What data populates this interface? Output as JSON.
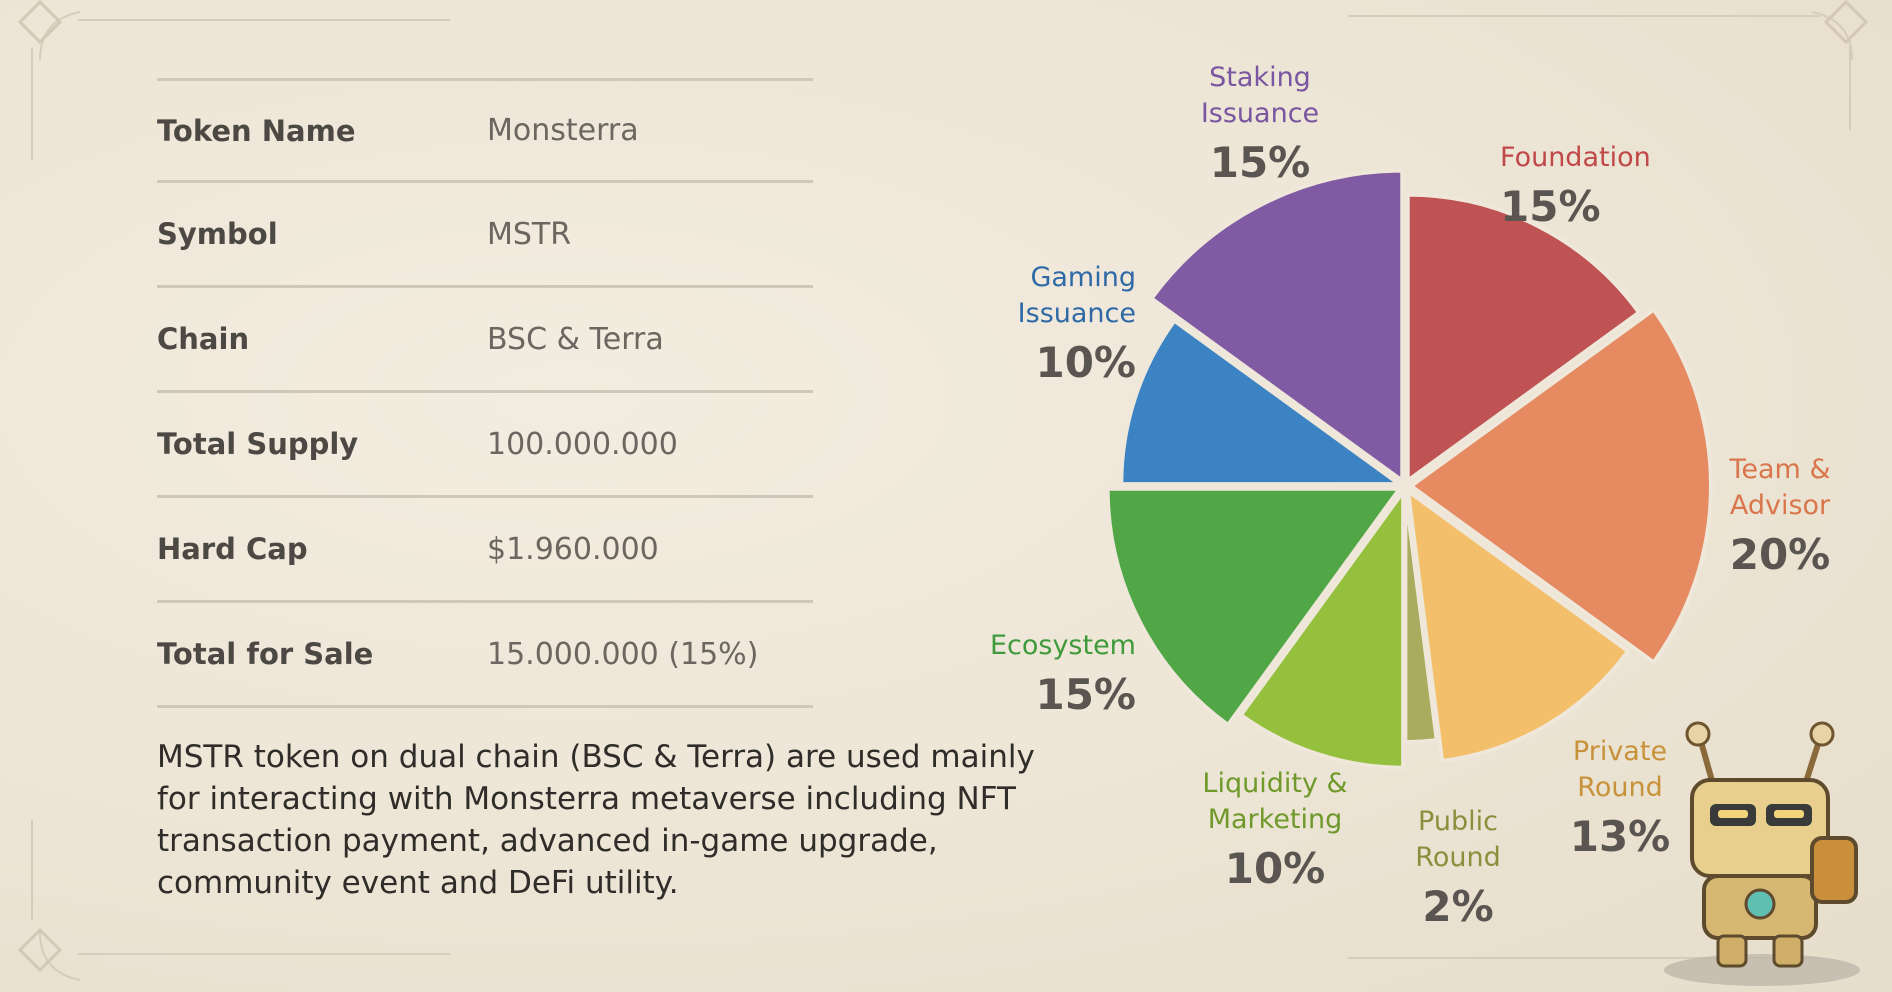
{
  "token_info": {
    "rows": [
      {
        "label": "Token Name",
        "value": "Monsterra"
      },
      {
        "label": "Symbol",
        "value": "MSTR"
      },
      {
        "label": "Chain",
        "value": "BSC & Terra"
      },
      {
        "label": "Total Supply",
        "value": "100.000.000"
      },
      {
        "label": "Hard Cap",
        "value": "$1.960.000"
      },
      {
        "label": "Total for Sale",
        "value": "15.000.000 (15%)"
      }
    ],
    "description": "MSTR token on dual chain (BSC & Terra) are used mainly for interacting with Monsterra metaverse including NFT transaction payment, advanced in-game upgrade, community event and DeFi utility."
  },
  "chart_data": {
    "type": "pie",
    "title": "",
    "slices": [
      {
        "name_lines": [
          "Foundation"
        ],
        "label": "Foundation",
        "value": 15,
        "value_label": "15%",
        "color": "#bf5252"
      },
      {
        "name_lines": [
          "Team &",
          "Advisor"
        ],
        "label": "Team & Advisor",
        "value": 20,
        "value_label": "20%",
        "color": "#e68a62"
      },
      {
        "name_lines": [
          "Private",
          "Round"
        ],
        "label": "Private Round",
        "value": 13,
        "value_label": "13%",
        "color": "#f3bf6a"
      },
      {
        "name_lines": [
          "Public",
          "Round"
        ],
        "label": "Public Round",
        "value": 2,
        "value_label": "2%",
        "color": "#a9ab5e"
      },
      {
        "name_lines": [
          "Liquidity &",
          "Marketing"
        ],
        "label": "Liquidity & Marketing",
        "value": 10,
        "value_label": "10%",
        "color": "#95c03e"
      },
      {
        "name_lines": [
          "Ecosystem"
        ],
        "label": "Ecosystem",
        "value": 15,
        "value_label": "15%",
        "color": "#51a746"
      },
      {
        "name_lines": [
          "Gaming",
          "Issuance"
        ],
        "label": "Gaming Issuance",
        "value": 10,
        "value_label": "10%",
        "color": "#3c83c4"
      },
      {
        "name_lines": [
          "Staking",
          "Issuance"
        ],
        "label": "Staking Issuance",
        "value": 15,
        "value_label": "15%",
        "color": "#805ba3"
      }
    ],
    "label_colors": {
      "Foundation": "#c14848",
      "Team & Advisor": "#d9764c",
      "Private Round": "#c8923a",
      "Public Round": "#8d8e3c",
      "Liquidity & Marketing": "#6f9a2b",
      "Ecosystem": "#3e9a3a",
      "Gaming Issuance": "#2f6aa6",
      "Staking Issuance": "#7a55a0"
    }
  },
  "icons": {
    "mascot": "robot-mascot-icon",
    "frame_ornament": "diamond-ornament-icon"
  }
}
